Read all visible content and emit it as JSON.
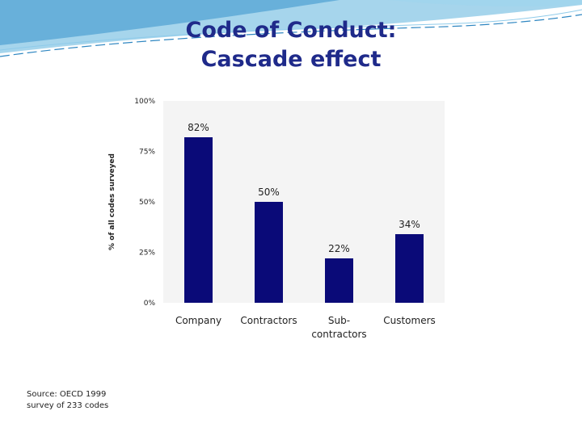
{
  "slide": {
    "title_line1": "Code of Conduct:",
    "title_line2": "Cascade effect",
    "source_line1": "Source:  OECD 1999",
    "source_line2": "survey of 233 codes"
  },
  "colors": {
    "bar": "#0a0a78",
    "title": "#1f2a8a",
    "swoosh": "#4aa3d4",
    "plot_bg": "#f4f4f4"
  },
  "chart_data": {
    "type": "bar",
    "categories": [
      [
        "Company"
      ],
      [
        "Contractors"
      ],
      [
        "Sub-",
        "contractors"
      ],
      [
        "Customers"
      ]
    ],
    "values": [
      82,
      50,
      22,
      34
    ],
    "value_labels": [
      "82%",
      "50%",
      "22%",
      "34%"
    ],
    "ylim": [
      0,
      100
    ],
    "yticks": [
      0,
      25,
      50,
      75,
      100
    ],
    "ytick_labels": [
      "0%",
      "25%",
      "50%",
      "75%",
      "100%"
    ],
    "ylabel": "% of all codes surveyed",
    "grid": false,
    "legend": "none"
  }
}
